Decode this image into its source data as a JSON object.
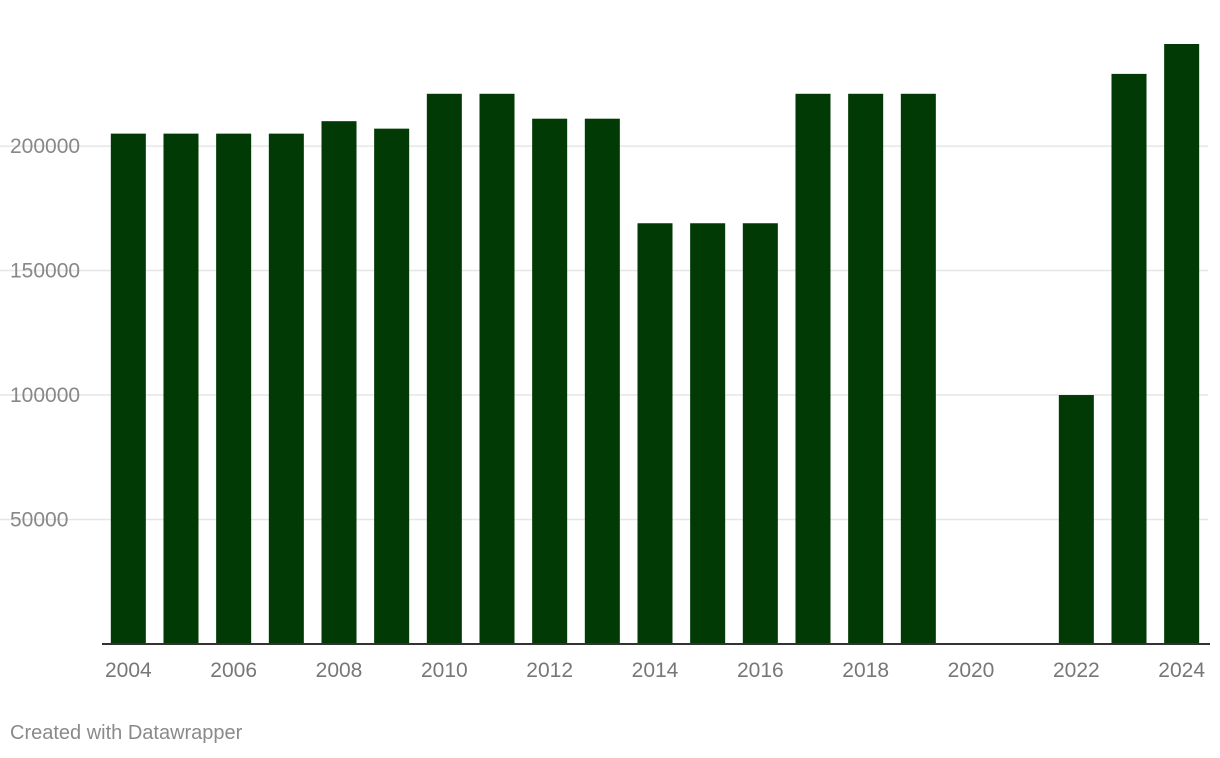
{
  "chart_data": {
    "type": "bar",
    "title": "",
    "xlabel": "",
    "ylabel": "",
    "categories": [
      "2004",
      "2005",
      "2006",
      "2007",
      "2008",
      "2009",
      "2010",
      "2011",
      "2012",
      "2013",
      "2014",
      "2015",
      "2016",
      "2017",
      "2018",
      "2019",
      "2020",
      "2021",
      "2022",
      "2023",
      "2024"
    ],
    "values": [
      205000,
      205000,
      205000,
      205000,
      210000,
      207000,
      221000,
      221000,
      211000,
      211000,
      169000,
      169000,
      169000,
      221000,
      221000,
      221000,
      null,
      null,
      100000,
      229000,
      241000
    ],
    "ylim": [
      0,
      241000
    ],
    "y_ticks": [
      "50000",
      "100000",
      "150000",
      "200000"
    ],
    "x_tick_labels": [
      "2004",
      "2006",
      "2008",
      "2010",
      "2012",
      "2014",
      "2016",
      "2018",
      "2020",
      "2022",
      "2024"
    ],
    "bar_color": "#013a04",
    "grid": true,
    "legend": "none"
  },
  "footer": {
    "credit": "Created with Datawrapper"
  }
}
